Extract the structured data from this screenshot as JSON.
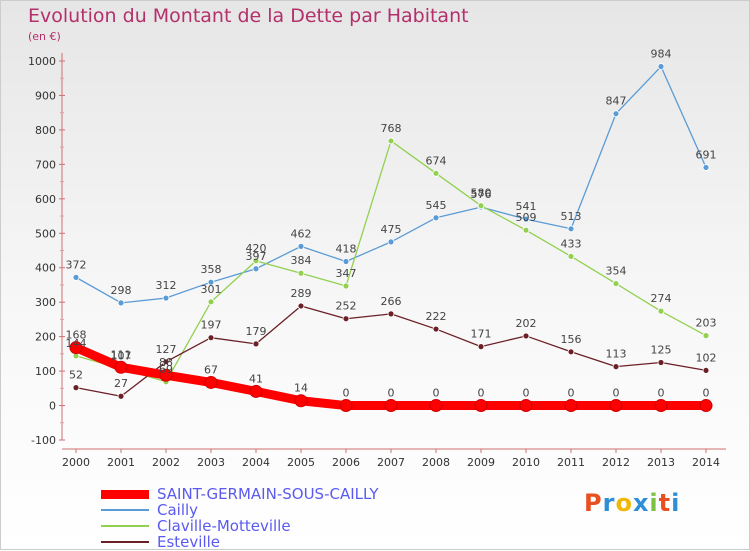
{
  "title": "Evolution du Montant de la Dette par Habitant",
  "subtitle": "(en €)",
  "brand": {
    "text": "Proxiti",
    "letter_colors": [
      "#e8501f",
      "#2f8fd6",
      "#f2b705",
      "#2f8fd6",
      "#7cc242",
      "#e8501f",
      "#2f8fd6"
    ]
  },
  "chart_data": {
    "type": "line",
    "x": [
      "2000",
      "2001",
      "2002",
      "2003",
      "2004",
      "2005",
      "2006",
      "2007",
      "2008",
      "2009",
      "2010",
      "2011",
      "2012",
      "2013",
      "2014"
    ],
    "ylim": [
      -100,
      1000
    ],
    "yticks": [
      "1000",
      "900",
      "800",
      "700",
      "600",
      "500",
      "400",
      "300",
      "200",
      "100",
      "0",
      "-100"
    ],
    "grid": false,
    "legend_position": "bottom",
    "series": [
      {
        "name": "SAINT-GERMAIN-SOUS-CAILLY",
        "color": "#ff0000",
        "values": [
          168,
          111,
          88,
          67,
          41,
          14,
          0,
          0,
          0,
          0,
          0,
          0,
          0,
          0,
          0
        ],
        "labels": [
          "168",
          "111",
          "88",
          "67",
          "41",
          "14",
          "0",
          "0",
          "0",
          "0",
          "0",
          "0",
          "0",
          "0",
          "0"
        ]
      },
      {
        "name": "Cailly",
        "color": "#5b9bd5",
        "values": [
          372,
          298,
          312,
          358,
          397,
          462,
          418,
          475,
          545,
          576,
          541,
          513,
          847,
          984,
          691
        ],
        "labels": [
          "372",
          "298",
          "312",
          "358",
          "397",
          "462",
          "418",
          "475",
          "545",
          "576",
          "541",
          "513",
          "847",
          "984",
          "691"
        ]
      },
      {
        "name": "Claville-Motteville",
        "color": "#92d050",
        "values": [
          144,
          107,
          69,
          301,
          420,
          384,
          347,
          768,
          674,
          580,
          509,
          433,
          354,
          274,
          203
        ],
        "labels": [
          "144",
          "107",
          "69",
          "301",
          "420",
          "384",
          "347",
          "768",
          "674",
          "580",
          "509",
          "433",
          "354",
          "274",
          "203"
        ]
      },
      {
        "name": "Esteville",
        "color": "#6b1f26",
        "values": [
          52,
          27,
          127,
          197,
          179,
          289,
          252,
          266,
          222,
          171,
          202,
          156,
          113,
          125,
          102
        ],
        "labels": [
          "52",
          "27",
          "127",
          "197",
          "179",
          "289",
          "252",
          "266",
          "222",
          "171",
          "202",
          "156",
          "113",
          "125",
          "102"
        ]
      }
    ]
  }
}
